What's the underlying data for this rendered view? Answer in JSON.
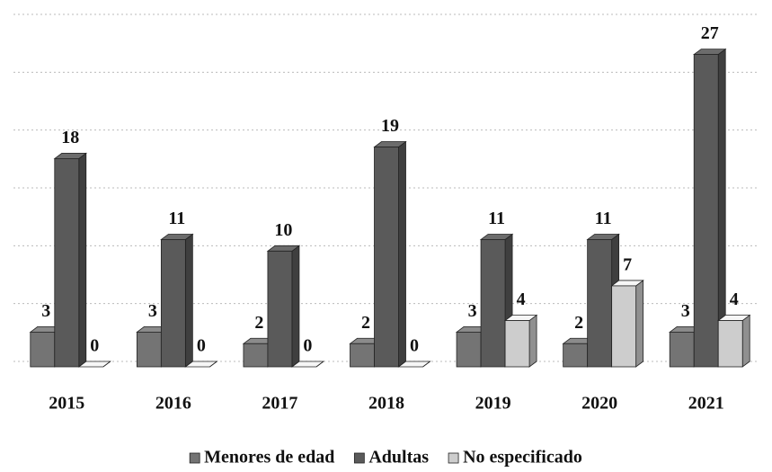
{
  "chart_data": {
    "type": "bar3d",
    "categories": [
      "2015",
      "2016",
      "2017",
      "2018",
      "2019",
      "2020",
      "2021"
    ],
    "series": [
      {
        "name": "Menores de edad",
        "color": "#747474",
        "values": [
          3,
          3,
          2,
          2,
          3,
          2,
          3
        ]
      },
      {
        "name": "Adultas",
        "color": "#5a5a5a",
        "values": [
          18,
          11,
          10,
          19,
          11,
          11,
          27
        ]
      },
      {
        "name": "No especificado",
        "color": "#cdcdcd",
        "values": [
          0,
          0,
          0,
          0,
          4,
          7,
          4
        ]
      }
    ],
    "ylim": [
      0,
      30
    ],
    "yticks": [
      0,
      5,
      10,
      15,
      20,
      25,
      30
    ],
    "grid": true,
    "legend": "bottom"
  }
}
